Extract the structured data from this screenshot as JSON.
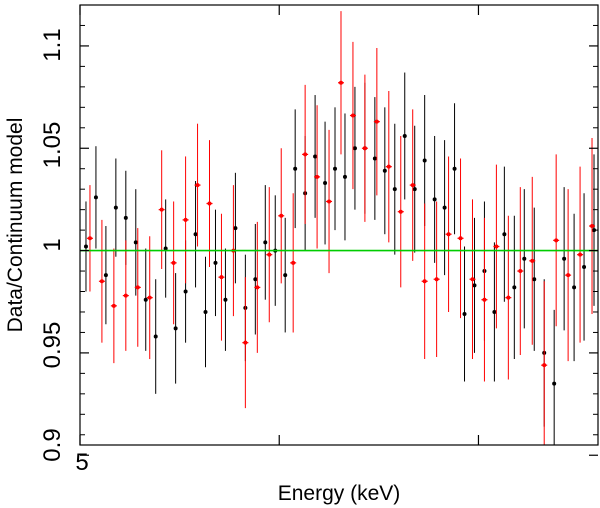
{
  "chart_data": {
    "type": "scatter",
    "xlabel": "Energy (keV)",
    "ylabel": "Data/Continuum model",
    "x_tick_labels": [
      "5"
    ],
    "y_tick_labels": [
      "0.9",
      "0.95",
      "1",
      "1.05",
      "1.1"
    ],
    "y_ticks": [
      0.9,
      0.95,
      1.0,
      1.05,
      1.1
    ],
    "xlim": [
      5.0,
      7.6
    ],
    "ylim": [
      0.905,
      1.12
    ],
    "x_major_ticks": [
      5.0,
      6.0,
      7.0
    ],
    "reference_line": {
      "y": 1.0,
      "color": "#00cc00"
    },
    "colors": {
      "black_series": "#000000",
      "red_series": "#ff0000"
    },
    "series": [
      {
        "name": "black",
        "color": "#000000",
        "x": [
          5.03,
          5.08,
          5.13,
          5.18,
          5.23,
          5.28,
          5.33,
          5.38,
          5.43,
          5.48,
          5.53,
          5.58,
          5.63,
          5.68,
          5.73,
          5.78,
          5.83,
          5.88,
          5.93,
          5.98,
          6.03,
          6.08,
          6.13,
          6.18,
          6.23,
          6.28,
          6.33,
          6.38,
          6.43,
          6.48,
          6.53,
          6.58,
          6.63,
          6.68,
          6.73,
          6.78,
          6.83,
          6.88,
          6.93,
          6.98,
          7.03,
          7.08,
          7.13,
          7.18,
          7.23,
          7.28,
          7.33,
          7.38,
          7.43,
          7.48,
          7.53,
          7.58
        ],
        "y": [
          1.002,
          1.026,
          0.988,
          1.021,
          1.016,
          1.004,
          0.976,
          0.958,
          1.001,
          0.962,
          0.98,
          1.008,
          0.97,
          0.994,
          0.976,
          1.011,
          0.972,
          0.986,
          1.004,
          1.0,
          0.988,
          1.04,
          1.028,
          1.046,
          1.033,
          1.04,
          1.036,
          1.05,
          1.05,
          1.045,
          1.039,
          1.03,
          1.056,
          1.03,
          1.044,
          1.025,
          1.021,
          1.04,
          0.969,
          0.983,
          0.99,
          0.97,
          1.008,
          0.982,
          0.996,
          0.986,
          0.95,
          0.935,
          0.996,
          0.982,
          0.992,
          1.01
        ],
        "err": [
          0.022,
          0.025,
          0.024,
          0.024,
          0.023,
          0.026,
          0.025,
          0.028,
          0.024,
          0.027,
          0.025,
          0.026,
          0.027,
          0.026,
          0.025,
          0.027,
          0.026,
          0.027,
          0.028,
          0.027,
          0.028,
          0.029,
          0.028,
          0.03,
          0.03,
          0.03,
          0.031,
          0.03,
          0.032,
          0.03,
          0.031,
          0.032,
          0.031,
          0.031,
          0.032,
          0.031,
          0.033,
          0.032,
          0.033,
          0.033,
          0.034,
          0.034,
          0.033,
          0.035,
          0.034,
          0.035,
          0.036,
          0.036,
          0.035,
          0.036,
          0.036,
          0.037
        ]
      },
      {
        "name": "red",
        "color": "#ff0000",
        "x": [
          5.05,
          5.11,
          5.17,
          5.23,
          5.29,
          5.35,
          5.41,
          5.47,
          5.53,
          5.59,
          5.65,
          5.71,
          5.77,
          5.83,
          5.89,
          5.95,
          6.01,
          6.07,
          6.13,
          6.19,
          6.25,
          6.31,
          6.37,
          6.43,
          6.49,
          6.55,
          6.61,
          6.67,
          6.73,
          6.79,
          6.85,
          6.91,
          6.97,
          7.03,
          7.09,
          7.15,
          7.21,
          7.27,
          7.33,
          7.39,
          7.45,
          7.51,
          7.57
        ],
        "y": [
          1.006,
          0.985,
          0.973,
          0.978,
          0.982,
          0.977,
          1.02,
          0.994,
          1.015,
          1.032,
          1.023,
          0.987,
          1.0,
          0.955,
          0.982,
          0.998,
          1.017,
          0.994,
          1.047,
          1.036,
          1.024,
          1.082,
          1.066,
          1.05,
          1.063,
          1.041,
          1.019,
          1.032,
          0.985,
          0.986,
          1.008,
          1.006,
          0.986,
          0.976,
          1.002,
          0.977,
          0.99,
          0.995,
          0.944,
          1.005,
          0.988,
          0.998,
          1.012
        ],
        "err": [
          0.026,
          0.03,
          0.028,
          0.027,
          0.029,
          0.03,
          0.029,
          0.03,
          0.031,
          0.03,
          0.031,
          0.031,
          0.032,
          0.032,
          0.032,
          0.033,
          0.033,
          0.034,
          0.034,
          0.035,
          0.035,
          0.035,
          0.036,
          0.036,
          0.036,
          0.037,
          0.037,
          0.037,
          0.038,
          0.038,
          0.038,
          0.039,
          0.039,
          0.04,
          0.04,
          0.04,
          0.041,
          0.041,
          0.041,
          0.042,
          0.042,
          0.043,
          0.043
        ]
      }
    ]
  }
}
